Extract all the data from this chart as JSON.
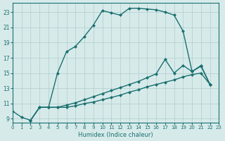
{
  "xlabel": "Humidex (Indice chaleur)",
  "background_color": "#d7eaea",
  "grid_color": "#b0cccc",
  "line_color": "#1a7070",
  "xlim": [
    0,
    23
  ],
  "ylim": [
    8.5,
    24.2
  ],
  "yticks": [
    9,
    11,
    13,
    15,
    17,
    19,
    21,
    23
  ],
  "xticks": [
    0,
    1,
    2,
    3,
    4,
    5,
    6,
    7,
    8,
    9,
    10,
    11,
    12,
    13,
    14,
    15,
    16,
    17,
    18,
    19,
    20,
    21,
    22,
    23
  ],
  "curve_top_x": [
    0,
    1,
    2,
    3,
    4,
    5,
    6,
    7,
    8,
    9,
    10,
    11,
    12,
    13,
    14,
    15,
    16,
    17,
    18,
    19,
    20,
    21,
    22
  ],
  "curve_top_y": [
    10.0,
    9.2,
    8.8,
    10.5,
    10.5,
    15.0,
    17.8,
    18.5,
    19.8,
    21.3,
    23.2,
    22.9,
    22.6,
    23.5,
    23.5,
    23.4,
    23.3,
    23.0,
    22.6,
    20.5,
    15.2,
    16.0,
    13.5
  ],
  "curve_mid_x": [
    2,
    3,
    4,
    5,
    6,
    7,
    8,
    9,
    10,
    11,
    12,
    13,
    14,
    15,
    16,
    17,
    18,
    19,
    20,
    21,
    22
  ],
  "curve_mid_y": [
    8.8,
    10.5,
    10.5,
    10.5,
    10.8,
    11.1,
    11.5,
    11.9,
    12.3,
    12.7,
    13.1,
    13.5,
    13.9,
    14.4,
    14.9,
    16.8,
    15.0,
    16.0,
    15.2,
    15.9,
    13.5
  ],
  "curve_bot_x": [
    2,
    3,
    4,
    5,
    6,
    7,
    8,
    9,
    10,
    11,
    12,
    13,
    14,
    15,
    16,
    17,
    18,
    19,
    20,
    21,
    22
  ],
  "curve_bot_y": [
    8.8,
    10.5,
    10.5,
    10.5,
    10.5,
    10.7,
    11.0,
    11.2,
    11.5,
    11.8,
    12.1,
    12.5,
    12.8,
    13.2,
    13.5,
    13.8,
    14.1,
    14.5,
    14.8,
    15.0,
    13.5
  ]
}
